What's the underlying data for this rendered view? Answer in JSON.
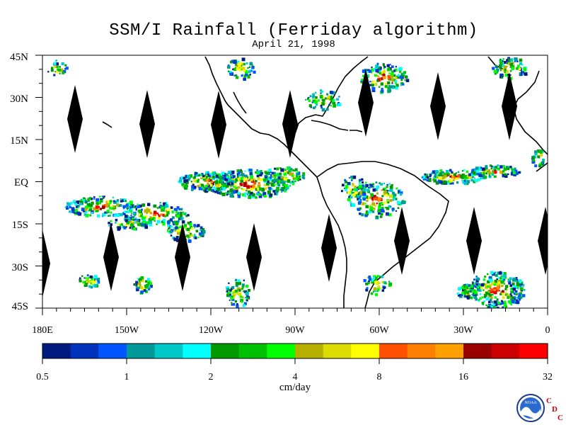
{
  "title": "SSM/I Rainfall (Ferriday algorithm)",
  "date": "April 21, 1998",
  "lat_labels": [
    "45N",
    "30N",
    "15N",
    "EQ",
    "15S",
    "30S",
    "45S"
  ],
  "lon_labels": [
    "180E",
    "150W",
    "120W",
    "90W",
    "60W",
    "30W",
    "0"
  ],
  "colorbar": {
    "colors": [
      "#001a80",
      "#0033bb",
      "#0055ff",
      "#009999",
      "#00c8c8",
      "#00ffff",
      "#009900",
      "#00c000",
      "#00ff00",
      "#b8b000",
      "#dcdc00",
      "#ffff00",
      "#ff5000",
      "#ff8000",
      "#ffa000",
      "#990000",
      "#cc0000",
      "#ff0000"
    ],
    "tick_labels": [
      "0.5",
      "1",
      "2",
      "4",
      "8",
      "16",
      "32"
    ],
    "units": "cm/day"
  },
  "logo": {
    "noaa_text": "NOAA",
    "cdc_letters": [
      "C",
      "D",
      "C"
    ]
  },
  "map": {
    "type": "precipitation",
    "lon_range": [
      "180E",
      "0"
    ],
    "lat_range": [
      "45S",
      "45N"
    ],
    "rain_zones": [
      {
        "name": "ITCZ central Pacific",
        "intensity": "heavy"
      },
      {
        "name": "SPCZ southwest Pacific",
        "intensity": "moderate"
      },
      {
        "name": "Amazon basin",
        "intensity": "moderate"
      },
      {
        "name": "ITCZ Atlantic",
        "intensity": "heavy"
      },
      {
        "name": "South Atlantic storm track",
        "intensity": "heavy"
      },
      {
        "name": "North Atlantic storm track",
        "intensity": "moderate"
      }
    ],
    "no_data_swaths": 13
  }
}
